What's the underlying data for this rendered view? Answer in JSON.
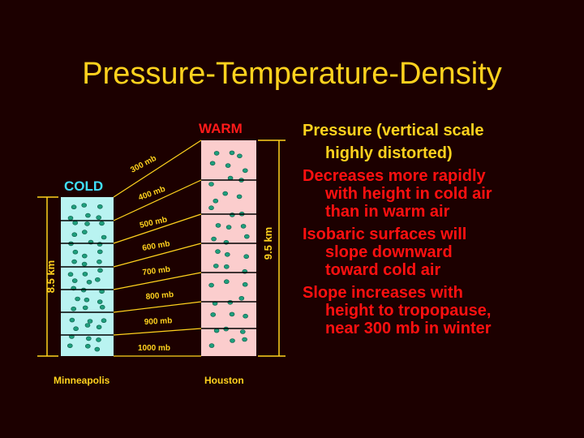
{
  "slide": {
    "title": "Pressure-Temperature-Density",
    "cold_label": "COLD",
    "warm_label": "WARM",
    "cold_city": "Minneapolis",
    "warm_city": "Houston",
    "cold_height": "8.5 km",
    "warm_height": "9.5 km",
    "pressure_levels": [
      "300 mb",
      "400 mb",
      "500 mb",
      "600 mb",
      "700 mb",
      "800 mb",
      "900 mb",
      "1000 mb"
    ],
    "colors": {
      "background": "#1c0000",
      "title": "#ffd21e",
      "cold_column": "#b9f3f1",
      "warm_column": "#fbcdcd",
      "dots": "#1f9f7d",
      "isobar_lines": "#ffd21e",
      "cold_label": "#40e0ff",
      "warm_label": "#ff1a1a",
      "heading_text": "#ffd21e",
      "bullet_text": "#ff1010"
    },
    "text": {
      "heading_line1": "Pressure (vertical scale",
      "heading_line2": "highly distorted)",
      "p1_line1": "Decreases more rapidly",
      "p1_line2": "with height in cold air",
      "p1_line3": "than in warm air",
      "p2_line1": "Isobaric surfaces will",
      "p2_line2": "slope downward",
      "p2_line3": "toward cold air",
      "p3_line1": "Slope increases with",
      "p3_line2": "height to tropopause,",
      "p3_line3": "near 300 mb in winter"
    }
  }
}
